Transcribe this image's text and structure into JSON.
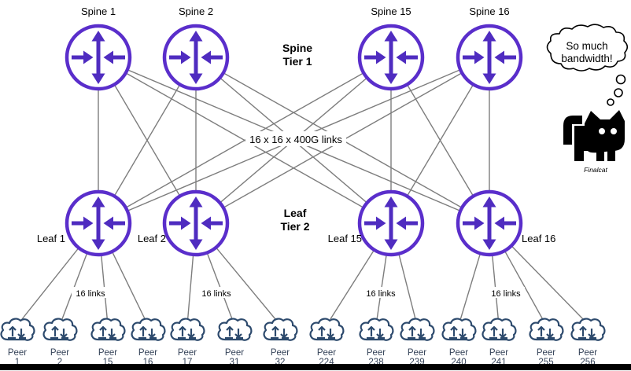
{
  "tiers": {
    "spine": {
      "line1": "Spine",
      "line2": "Tier 1"
    },
    "leaf": {
      "line1": "Leaf",
      "line2": "Tier 2"
    }
  },
  "labels": {
    "spine_links": "16 x 16 x 400G links",
    "leaf_links": "16 links"
  },
  "spines": [
    "Spine 1",
    "Spine 2",
    "Spine 15",
    "Spine 16"
  ],
  "leaves": [
    "Leaf 1",
    "Leaf 2",
    "Leaf 15",
    "Leaf 16"
  ],
  "peers": {
    "word": "Peer",
    "numbers": [
      "1",
      "2",
      "15",
      "16",
      "17",
      "31",
      "32",
      "224",
      "238",
      "239",
      "240",
      "241",
      "255",
      "256"
    ]
  },
  "cat": {
    "thought_line1": "So much",
    "thought_line2": "bandwidth!",
    "name": "Finalcat"
  },
  "icons": {
    "router": "crossed-arrows-router-icon",
    "peer": "cloud-up-down-arrows-icon",
    "mascot": "black-cat-icon",
    "thought": "thought-bubble-icon"
  },
  "colors": {
    "router_purple": "#5a2ecb",
    "router_arrow": "#4f2cc0",
    "line_gray": "#7d7d7d",
    "cloud_navy": "#2d4a6d",
    "peer_text": "#344258",
    "ink": "#000000"
  }
}
